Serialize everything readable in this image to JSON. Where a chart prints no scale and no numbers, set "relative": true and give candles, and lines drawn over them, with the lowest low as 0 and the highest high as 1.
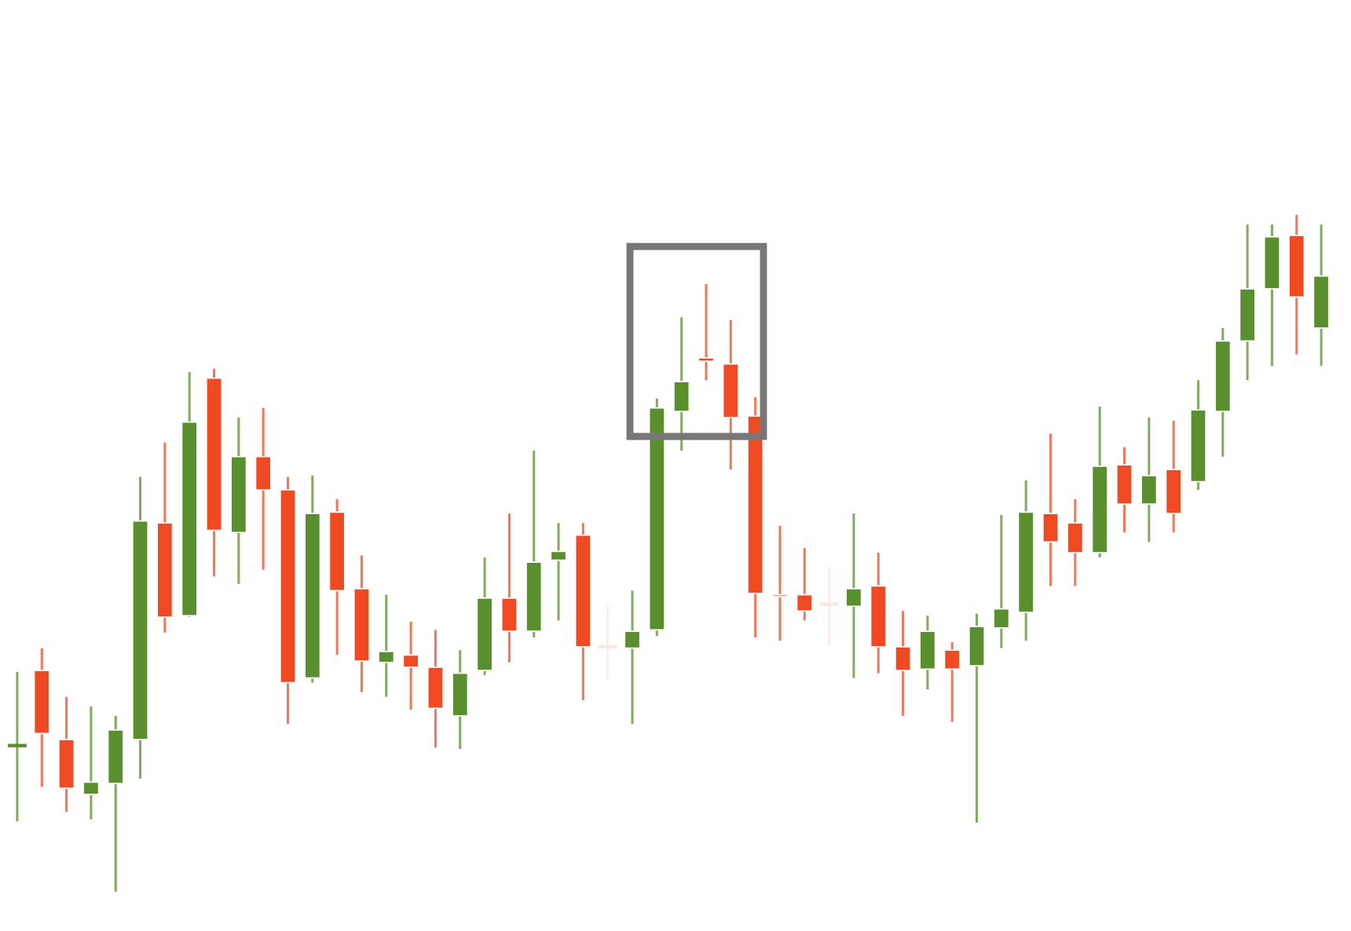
{
  "chart_data": {
    "type": "candlestick",
    "relative": true,
    "categories": [
      null,
      null,
      null,
      null,
      null,
      null,
      null,
      null,
      null,
      null,
      null,
      null,
      null,
      null,
      null,
      null,
      null,
      null,
      null,
      null,
      null,
      null,
      null,
      null,
      null,
      null,
      null,
      null,
      null,
      null,
      null,
      null,
      null,
      null,
      null,
      null,
      null,
      null,
      null,
      null,
      null,
      null,
      null,
      null,
      null,
      null,
      null,
      null,
      null,
      null,
      null,
      null,
      null,
      null
    ],
    "ohlc": [
      [
        0.216,
        0.325,
        0.104,
        0.216
      ],
      [
        0.327,
        0.36,
        0.155,
        0.234
      ],
      [
        0.225,
        0.288,
        0.118,
        0.153
      ],
      [
        0.144,
        0.274,
        0.107,
        0.162
      ],
      [
        0.16,
        0.26,
        0.0,
        0.239
      ],
      [
        0.225,
        0.613,
        0.167,
        0.548
      ],
      [
        0.545,
        0.664,
        0.383,
        0.406
      ],
      [
        0.408,
        0.768,
        0.406,
        0.694
      ],
      [
        0.759,
        0.773,
        0.466,
        0.534
      ],
      [
        0.531,
        0.701,
        0.455,
        0.643
      ],
      [
        0.643,
        0.715,
        0.476,
        0.594
      ],
      [
        0.594,
        0.613,
        0.248,
        0.309
      ],
      [
        0.316,
        0.615,
        0.309,
        0.559
      ],
      [
        0.561,
        0.58,
        0.35,
        0.445
      ],
      [
        0.448,
        0.497,
        0.295,
        0.341
      ],
      [
        0.339,
        0.439,
        0.288,
        0.355
      ],
      [
        0.35,
        0.399,
        0.269,
        0.332
      ],
      [
        0.332,
        0.387,
        0.213,
        0.271
      ],
      [
        0.26,
        0.357,
        0.211,
        0.323
      ],
      [
        0.327,
        0.494,
        0.32,
        0.434
      ],
      [
        0.434,
        0.559,
        0.339,
        0.385
      ],
      [
        0.385,
        0.652,
        0.376,
        0.487
      ],
      [
        0.49,
        0.545,
        0.401,
        0.503
      ],
      [
        0.527,
        0.545,
        0.283,
        0.362
      ],
      [
        0.362,
        0.422,
        0.313,
        0.362
      ],
      [
        0.36,
        0.445,
        0.248,
        0.385
      ],
      [
        0.387,
        0.729,
        0.378,
        0.715
      ],
      [
        0.71,
        0.849,
        0.652,
        0.754
      ],
      [
        0.789,
        0.898,
        0.756,
        0.784
      ],
      [
        0.78,
        0.845,
        0.624,
        0.701
      ],
      [
        0.703,
        0.731,
        0.376,
        0.441
      ],
      [
        0.439,
        0.541,
        0.371,
        0.436
      ],
      [
        0.439,
        0.508,
        0.401,
        0.415
      ],
      [
        0.425,
        0.48,
        0.364,
        0.425
      ],
      [
        0.422,
        0.559,
        0.316,
        0.448
      ],
      [
        0.452,
        0.501,
        0.323,
        0.362
      ],
      [
        0.362,
        0.415,
        0.26,
        0.327
      ],
      [
        0.329,
        0.408,
        0.299,
        0.385
      ],
      [
        0.357,
        0.369,
        0.251,
        0.329
      ],
      [
        0.334,
        0.411,
        0.102,
        0.392
      ],
      [
        0.39,
        0.557,
        0.36,
        0.418
      ],
      [
        0.413,
        0.608,
        0.371,
        0.561
      ],
      [
        0.559,
        0.677,
        0.452,
        0.517
      ],
      [
        0.545,
        0.58,
        0.452,
        0.501
      ],
      [
        0.501,
        0.717,
        0.494,
        0.629
      ],
      [
        0.631,
        0.657,
        0.531,
        0.573
      ],
      [
        0.573,
        0.701,
        0.517,
        0.615
      ],
      [
        0.624,
        0.696,
        0.531,
        0.559
      ],
      [
        0.606,
        0.756,
        0.594,
        0.712
      ],
      [
        0.71,
        0.833,
        0.643,
        0.814
      ],
      [
        0.814,
        0.986,
        0.756,
        0.891
      ],
      [
        0.891,
        0.986,
        0.777,
        0.968
      ],
      [
        0.97,
        1.0,
        0.794,
        0.879
      ],
      [
        0.833,
        0.986,
        0.777,
        0.91
      ]
    ],
    "colors": [
      "#5a8f2e",
      "#f04a23",
      "#f04a23",
      "#5a8f2e",
      "#5a8f2e",
      "#5a8f2e",
      "#f04a23",
      "#5a8f2e",
      "#f04a23",
      "#5a8f2e",
      "#f04a23",
      "#f04a23",
      "#5a8f2e",
      "#f04a23",
      "#f04a23",
      "#5a8f2e",
      "#f04a23",
      "#f04a23",
      "#5a8f2e",
      "#5a8f2e",
      "#f04a23",
      "#5a8f2e",
      "#5a8f2e",
      "#f04a23",
      "#f5e9e4",
      "#5a8f2e",
      "#5a8f2e",
      "#5a8f2e",
      "#f04a23",
      "#f04a23",
      "#f04a23",
      "#f04a23",
      "#f04a23",
      "#f5e9e4",
      "#5a8f2e",
      "#f04a23",
      "#f04a23",
      "#5a8f2e",
      "#f04a23",
      "#5a8f2e",
      "#5a8f2e",
      "#5a8f2e",
      "#f04a23",
      "#f04a23",
      "#5a8f2e",
      "#f04a23",
      "#5a8f2e",
      "#f04a23",
      "#5a8f2e",
      "#5a8f2e",
      "#5a8f2e",
      "#5a8f2e",
      "#f04a23",
      "#5a8f2e"
    ]
  }
}
